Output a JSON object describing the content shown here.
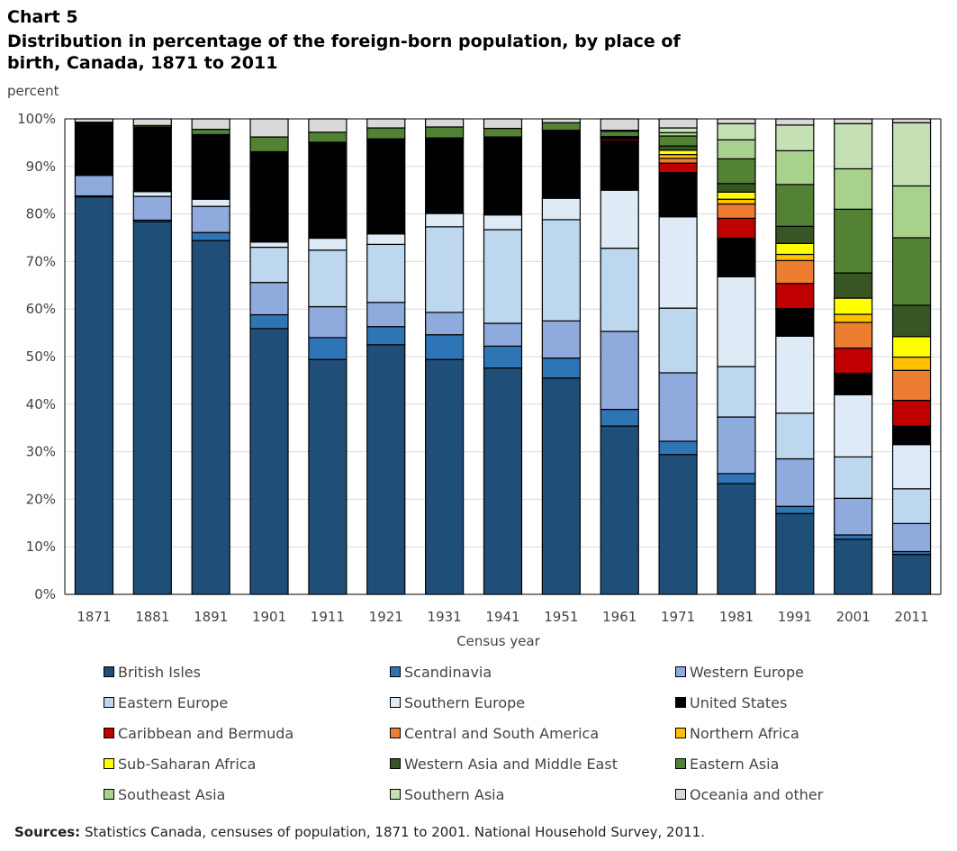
{
  "chart_label": "Chart 5",
  "source_label": "Sources:",
  "source_text": " Statistics Canada, censuses of population, 1871 to 2001. National Household Survey, 2011.",
  "chart_data": {
    "type": "bar",
    "stacked": true,
    "title": "Distribution in percentage of the foreign-born population, by place of birth, Canada, 1871 to 2011",
    "xlabel": "Census year",
    "ylabel": "percent",
    "ylim": [
      0,
      100
    ],
    "yticks": [
      "0%",
      "10%",
      "20%",
      "30%",
      "40%",
      "50%",
      "60%",
      "70%",
      "80%",
      "90%",
      "100%"
    ],
    "grid": true,
    "legend_position": "bottom",
    "categories": [
      "1871",
      "1881",
      "1891",
      "1901",
      "1911",
      "1921",
      "1931",
      "1941",
      "1951",
      "1961",
      "1971",
      "1981",
      "1991",
      "2001",
      "2011"
    ],
    "series": [
      {
        "name": "British Isles",
        "color": "#1f4e79",
        "values": [
          83.6,
          78.4,
          74.4,
          55.9,
          49.4,
          52.5,
          49.4,
          47.6,
          45.5,
          35.4,
          29.4,
          23.3,
          17.0,
          11.6,
          8.4
        ]
      },
      {
        "name": "Scandinavia",
        "color": "#2e75b6",
        "values": [
          0.2,
          0.3,
          1.7,
          2.9,
          4.6,
          3.8,
          5.2,
          4.6,
          4.2,
          3.5,
          2.8,
          2.1,
          1.5,
          0.9,
          0.6
        ]
      },
      {
        "name": "Western Europe",
        "color": "#8faadc",
        "values": [
          4.3,
          5.0,
          5.5,
          6.8,
          6.5,
          5.1,
          4.7,
          4.8,
          7.8,
          16.4,
          14.4,
          11.9,
          10.0,
          7.7,
          5.9
        ]
      },
      {
        "name": "Eastern Europe",
        "color": "#bdd7ee",
        "values": [
          0.0,
          0.0,
          0.0,
          7.4,
          11.9,
          12.2,
          18.0,
          19.7,
          21.3,
          17.5,
          13.6,
          10.6,
          9.6,
          8.7,
          7.3
        ]
      },
      {
        "name": "Southern Europe",
        "color": "#deebf7",
        "values": [
          0.0,
          1.0,
          1.5,
          1.1,
          2.5,
          2.2,
          2.8,
          3.1,
          4.5,
          12.2,
          19.2,
          18.9,
          16.2,
          13.1,
          9.3
        ]
      },
      {
        "name": "United States",
        "color": "#000000",
        "values": [
          11.2,
          13.6,
          13.6,
          19.0,
          20.2,
          20.0,
          15.9,
          16.4,
          14.3,
          10.4,
          9.3,
          8.1,
          5.8,
          4.5,
          3.9
        ]
      },
      {
        "name": "Caribbean and Bermuda",
        "color": "#c00000",
        "values": [
          0.0,
          0.0,
          0.0,
          0.0,
          0.0,
          0.0,
          0.0,
          0.0,
          0.0,
          0.4,
          2.0,
          4.2,
          5.3,
          5.3,
          5.4
        ]
      },
      {
        "name": "Central and South America",
        "color": "#ed7d31",
        "values": [
          0.0,
          0.0,
          0.0,
          0.0,
          0.0,
          0.0,
          0.0,
          0.0,
          0.0,
          0.1,
          1.0,
          3.0,
          4.8,
          5.4,
          6.3
        ]
      },
      {
        "name": "Northern Africa",
        "color": "#ffc000",
        "values": [
          0.0,
          0.0,
          0.0,
          0.0,
          0.0,
          0.0,
          0.0,
          0.0,
          0.0,
          0.1,
          0.8,
          1.0,
          1.3,
          1.7,
          2.8
        ]
      },
      {
        "name": "Sub-Saharan Africa",
        "color": "#ffff00",
        "values": [
          0.0,
          0.0,
          0.0,
          0.0,
          0.0,
          0.0,
          0.0,
          0.0,
          0.0,
          0.1,
          0.9,
          1.5,
          2.3,
          3.4,
          4.3
        ]
      },
      {
        "name": "Western Asia and Middle East",
        "color": "#375623",
        "values": [
          0.0,
          0.0,
          0.0,
          0.0,
          0.0,
          0.0,
          0.0,
          0.0,
          0.0,
          0.2,
          0.9,
          1.8,
          3.6,
          5.3,
          6.6
        ]
      },
      {
        "name": "Eastern Asia",
        "color": "#548235",
        "values": [
          0.0,
          0.3,
          1.1,
          3.1,
          2.1,
          2.3,
          2.3,
          1.8,
          1.6,
          1.1,
          2.1,
          5.2,
          8.8,
          13.4,
          14.2
        ]
      },
      {
        "name": "Southeast Asia",
        "color": "#a9d18e",
        "values": [
          0.0,
          0.0,
          0.0,
          0.0,
          0.0,
          0.0,
          0.0,
          0.0,
          0.0,
          0.1,
          0.7,
          4.0,
          7.1,
          8.5,
          10.9
        ]
      },
      {
        "name": "Southern Asia",
        "color": "#c5e0b4",
        "values": [
          0.0,
          0.0,
          0.0,
          0.0,
          0.0,
          0.0,
          0.0,
          0.0,
          0.0,
          0.1,
          1.0,
          3.4,
          5.4,
          9.5,
          13.3
        ]
      },
      {
        "name": "Oceania and other",
        "color": "#d9d9d9",
        "values": [
          0.7,
          1.4,
          2.2,
          3.8,
          2.8,
          1.9,
          1.7,
          2.0,
          0.8,
          2.4,
          1.9,
          1.0,
          1.3,
          1.0,
          0.8
        ]
      }
    ]
  }
}
